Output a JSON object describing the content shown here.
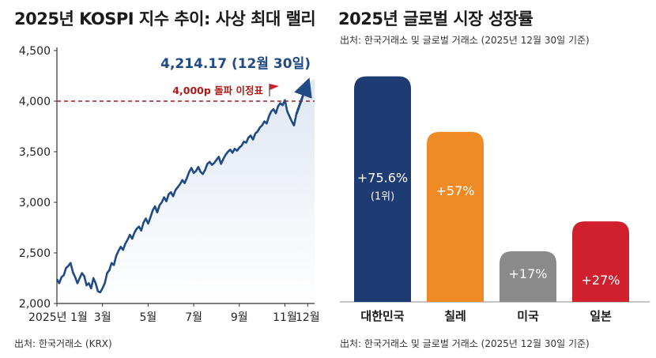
{
  "left": {
    "title": "2025년 KOSPI 지수 추이: 사상 최대 랠리",
    "source": "出처: 한국거래소 (KRX)",
    "chart_data": {
      "type": "area",
      "title": "2025년 KOSPI 지수 추이: 사상 최대 랠리",
      "ylim": [
        2000,
        4500
      ],
      "y_ticks": [
        "2,000",
        "2,500",
        "3,000",
        "3,500",
        "4,000",
        "4,500"
      ],
      "x_tick_labels": [
        "2025년 1월",
        "3월",
        "5월",
        "7월",
        "9월",
        "11월",
        "12월"
      ],
      "x_tick_positions": [
        1,
        3,
        5,
        7,
        9,
        11,
        12
      ],
      "xlim": [
        1,
        12.3
      ],
      "grid": false,
      "reference_line": {
        "value": 4000,
        "label": "4,000p 돌파 이정표"
      },
      "annotation": "4,214.17 (12월 30일)",
      "series": [
        {
          "x": [
            1.0,
            1.1,
            1.2,
            1.3,
            1.4,
            1.5,
            1.6,
            1.7,
            1.8,
            1.9,
            2.0,
            2.1,
            2.2,
            2.3,
            2.4,
            2.5,
            2.6,
            2.7,
            2.8,
            2.9,
            3.0,
            3.1,
            3.2,
            3.3,
            3.4,
            3.5,
            3.6,
            3.7,
            3.8,
            3.9,
            4.0,
            4.1,
            4.2,
            4.3,
            4.4,
            4.5,
            4.6,
            4.7,
            4.8,
            4.9,
            5.0,
            5.1,
            5.2,
            5.3,
            5.4,
            5.5,
            5.6,
            5.7,
            5.8,
            5.9,
            6.0,
            6.1,
            6.2,
            6.3,
            6.4,
            6.5,
            6.6,
            6.7,
            6.8,
            6.9,
            7.0,
            7.1,
            7.2,
            7.3,
            7.4,
            7.5,
            7.6,
            7.7,
            7.8,
            7.9,
            8.0,
            8.1,
            8.2,
            8.3,
            8.4,
            8.5,
            8.6,
            8.7,
            8.8,
            8.9,
            9.0,
            9.1,
            9.2,
            9.3,
            9.4,
            9.5,
            9.6,
            9.7,
            9.8,
            9.9,
            10.0,
            10.1,
            10.2,
            10.3,
            10.4,
            10.5,
            10.6,
            10.7,
            10.8,
            10.9,
            11.0,
            11.1,
            11.2,
            11.3,
            11.4,
            11.5
          ],
          "values": [
            2240,
            2200,
            2260,
            2280,
            2350,
            2370,
            2400,
            2310,
            2260,
            2200,
            2250,
            2300,
            2270,
            2180,
            2200,
            2150,
            2250,
            2200,
            2120,
            2110,
            2150,
            2200,
            2300,
            2330,
            2400,
            2380,
            2470,
            2520,
            2560,
            2530,
            2590,
            2630,
            2680,
            2640,
            2700,
            2740,
            2760,
            2720,
            2800,
            2840,
            2790,
            2850,
            2920,
            2960,
            2900,
            2970,
            3000,
            3050,
            3010,
            3080,
            3100,
            3060,
            3120,
            3150,
            3180,
            3220,
            3190,
            3240,
            3300,
            3340,
            3290,
            3310,
            3350,
            3300,
            3280,
            3320,
            3380,
            3400,
            3370,
            3390,
            3420,
            3450,
            3380,
            3430,
            3470,
            3500,
            3520,
            3490,
            3530,
            3510,
            3540,
            3560,
            3600,
            3590,
            3640,
            3660,
            3620,
            3680,
            3700,
            3740,
            3760,
            3800,
            3780,
            3850,
            3900,
            3920,
            3880,
            3950,
            3980,
            3960,
            4010,
            3900,
            3850,
            3800,
            3760,
            3870
          ]
        }
      ]
    }
  },
  "right": {
    "title": "2025년 글로벌 시장 성장률",
    "subtitle": "出처: 한국거래소 및 글로벌 거래소 (2025년 12월 30일 기준)",
    "source": "出처: 한국거래소 및 글로벌 거래소 (2025년 12월 30일 기준)",
    "chart_data": {
      "type": "bar",
      "title": "2025년 글로벌 시장 성장률",
      "categories": [
        "대한민국",
        "칠레",
        "미국",
        "일본"
      ],
      "values": [
        75.6,
        57,
        17,
        27
      ],
      "value_labels": [
        "+75.6%",
        "+57%",
        "+17%",
        "+27%"
      ],
      "rank_label": "(1위)",
      "colors": [
        "#1f3b73",
        "#f08a24",
        "#8a8a8a",
        "#d0202e"
      ],
      "ylim": [
        0,
        80
      ],
      "grid": false
    }
  },
  "colors": {
    "line": "#1f4a86",
    "area": "#dfe7f2",
    "reference": "#b01818",
    "annotation": "#1f4a86"
  }
}
